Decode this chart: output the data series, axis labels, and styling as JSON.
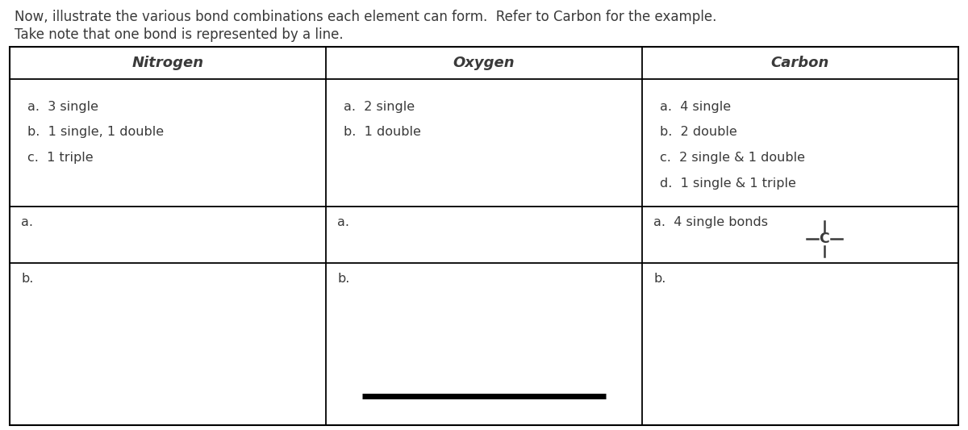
{
  "title_line1": "Now, illustrate the various bond combinations each element can form.  Refer to Carbon for the example.",
  "title_line2": "Take note that one bond is represented by a line.",
  "headers": [
    "Nitrogen",
    "Oxygen",
    "Carbon"
  ],
  "nitrogen_items": [
    "a.  3 single",
    "b.  1 single, 1 double",
    "c.  1 triple"
  ],
  "oxygen_items": [
    "a.  2 single",
    "b.  1 double"
  ],
  "carbon_items": [
    "a.  4 single",
    "b.  2 double",
    "c.  2 single & 1 double",
    "d.  1 single & 1 triple"
  ],
  "background_color": "#ffffff",
  "border_color": "#000000",
  "text_color": "#3a3a3a",
  "font_size": 11.5,
  "header_font_size": 13,
  "title_font_size": 12
}
